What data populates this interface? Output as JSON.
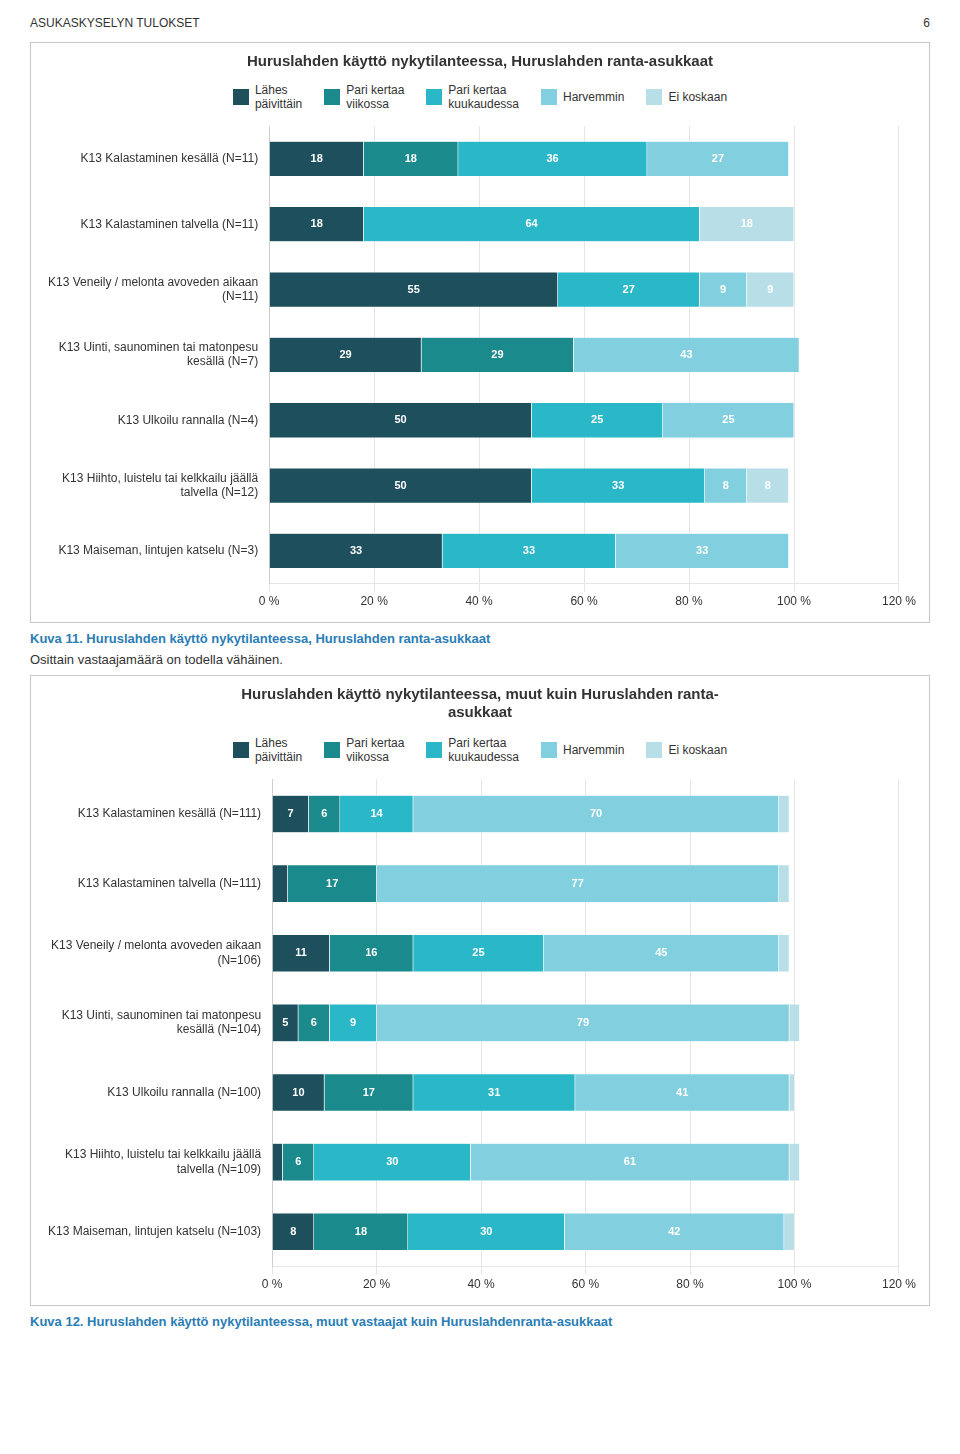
{
  "chart_data": [
    {
      "type": "bar",
      "orientation": "horizontal",
      "stacked": true,
      "title": "Huruslahden käyttö nykytilanteessa, Huruslahden ranta-asukkaat",
      "categories": [
        "K13 Kalastaminen kesällä (N=11)",
        "K13 Kalastaminen talvella (N=11)",
        "K13 Veneily / melonta avoveden aikaan\n(N=11)",
        "K13 Uinti, saunominen tai matonpesu\nkesällä (N=7)",
        "K13 Ulkoilu rannalla (N=4)",
        "K13 Hiihto, luistelu tai kelkkailu jäällä\ntalvella (N=12)",
        "K13 Maiseman, lintujen katselu (N=3)"
      ],
      "series": [
        {
          "name": "Lähes\npäivittäin",
          "color": "#1d4f5c",
          "values": [
            18,
            18,
            55,
            29,
            50,
            50,
            33
          ],
          "value_labels": [
            "18",
            "18",
            "55",
            "29",
            "50",
            "50",
            "33"
          ]
        },
        {
          "name": "Pari kertaa\nviikossa",
          "color": "#1a8a8c",
          "values": [
            18,
            0,
            0,
            29,
            0,
            0,
            0
          ],
          "value_labels": [
            "18",
            null,
            null,
            "29",
            null,
            null,
            null
          ]
        },
        {
          "name": "Pari kertaa\nkuukaudessa",
          "color": "#2ab8c8",
          "values": [
            36,
            64,
            27,
            0,
            25,
            33,
            33
          ],
          "value_labels": [
            "36",
            "64",
            "27",
            null,
            "25",
            "33",
            "33"
          ]
        },
        {
          "name": "Harvemmin",
          "color": "#82d0df",
          "values": [
            27,
            0,
            9,
            43,
            25,
            8,
            33
          ],
          "value_labels": [
            "27",
            null,
            "9",
            "43",
            "25",
            "8",
            "33"
          ]
        },
        {
          "name": "Ei koskaan",
          "color": "#b8dfe8",
          "values": [
            0,
            18,
            9,
            0,
            0,
            8,
            0
          ],
          "value_labels": [
            null,
            "18",
            "9",
            null,
            null,
            "8",
            null
          ]
        }
      ],
      "xlim": [
        0,
        120
      ],
      "xticks": [
        {
          "value": 0,
          "label": "0 %"
        },
        {
          "value": 20,
          "label": "20 %"
        },
        {
          "value": 40,
          "label": "40 %"
        },
        {
          "value": 60,
          "label": "60 %"
        },
        {
          "value": 80,
          "label": "80 %"
        },
        {
          "value": 100,
          "label": "100 %"
        },
        {
          "value": 120,
          "label": "120 %"
        }
      ],
      "grid": true,
      "legend": "top",
      "data_labels": true,
      "annotations": [
        "ASUKASKYSELYN TULOKSET",
        "6",
        "Kuva 11. Huruslahden käyttö nykytilanteessa, Huruslahden ranta-asukkaat",
        "Osittain vastaajamäärä on todella vähäinen."
      ]
    },
    {
      "type": "bar",
      "orientation": "horizontal",
      "stacked": true,
      "title": "Huruslahden käyttö nykytilanteessa, muut kuin Huruslahden ranta-\nasukkaat",
      "categories": [
        "K13 Kalastaminen kesällä (N=111)",
        "K13 Kalastaminen talvella (N=111)",
        "K13 Veneily / melonta avoveden aikaan\n(N=106)",
        "K13 Uinti, saunominen tai matonpesu\nkesällä (N=104)",
        "K13 Ulkoilu rannalla (N=100)",
        "K13 Hiihto, luistelu tai kelkkailu jäällä\ntalvella (N=109)",
        "K13 Maiseman, lintujen katselu (N=103)"
      ],
      "series": [
        {
          "name": "Lähes\npäivittäin",
          "color": "#1d4f5c",
          "values": [
            7,
            3,
            11,
            5,
            10,
            2,
            8
          ],
          "value_labels": [
            "7",
            null,
            "11",
            "5",
            "10",
            null,
            "8"
          ]
        },
        {
          "name": "Pari kertaa\nviikossa",
          "color": "#1a8a8c",
          "values": [
            6,
            17,
            16,
            6,
            17,
            6,
            18
          ],
          "value_labels": [
            "6",
            "17",
            "16",
            "6",
            "17",
            "6",
            "18"
          ]
        },
        {
          "name": "Pari kertaa\nkuukaudessa",
          "color": "#2ab8c8",
          "values": [
            14,
            0,
            25,
            9,
            31,
            30,
            30
          ],
          "value_labels": [
            "14",
            null,
            "25",
            "9",
            "31",
            "30",
            "30"
          ]
        },
        {
          "name": "Harvemmin",
          "color": "#82d0df",
          "values": [
            70,
            77,
            45,
            79,
            41,
            61,
            42
          ],
          "value_labels": [
            "70",
            "77",
            "45",
            "79",
            "41",
            "61",
            "42"
          ]
        },
        {
          "name": "Ei koskaan",
          "color": "#b8dfe8",
          "values": [
            2,
            2,
            2,
            2,
            1,
            2,
            2
          ],
          "value_labels": [
            null,
            null,
            null,
            null,
            null,
            null,
            null
          ]
        }
      ],
      "xlim": [
        0,
        120
      ],
      "xticks": [
        {
          "value": 0,
          "label": "0 %"
        },
        {
          "value": 20,
          "label": "20 %"
        },
        {
          "value": 40,
          "label": "40 %"
        },
        {
          "value": 60,
          "label": "60 %"
        },
        {
          "value": 80,
          "label": "80 %"
        },
        {
          "value": 100,
          "label": "100 %"
        },
        {
          "value": 120,
          "label": "120 %"
        }
      ],
      "grid": true,
      "legend": "top",
      "data_labels": true,
      "annotations": [
        "Kuva 12. Huruslahden käyttö nykytilanteessa, muut vastaajat kuin Huruslahdenranta-asukkaat"
      ]
    }
  ]
}
